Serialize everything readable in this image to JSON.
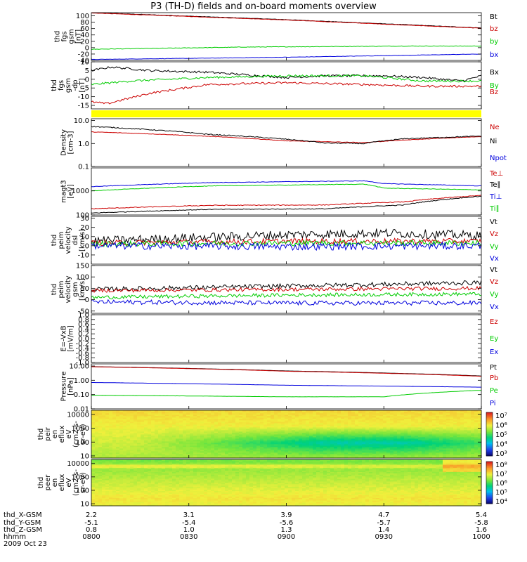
{
  "title": "P3 (TH-D) fields and on-board moments overview",
  "colors": {
    "black": "#000000",
    "red": "#cc0000",
    "green": "#00cc00",
    "blue": "#0000dd",
    "yellow": "#ffff00"
  },
  "chart_data": {
    "type": "line",
    "panels": [
      {
        "id": "fgs-gsm",
        "ylabel": [
          "thd",
          "fgs",
          "gsm",
          "[nT]"
        ],
        "scale": "linear",
        "ylim": [
          -40,
          110
        ],
        "ticks": [
          100,
          80,
          60,
          40,
          20,
          0,
          -20,
          -40
        ],
        "series": [
          {
            "name": "Bt",
            "color": "black",
            "points": [
              [
                0,
                110
              ],
              [
                0.5,
                88
              ],
              [
                1,
                62
              ]
            ],
            "noise": 0.6
          },
          {
            "name": "bz",
            "color": "red",
            "points": [
              [
                0,
                109
              ],
              [
                0.5,
                87
              ],
              [
                1,
                61
              ]
            ],
            "noise": 0.6
          },
          {
            "name": "by",
            "color": "green",
            "points": [
              [
                0,
                -5
              ],
              [
                0.4,
                2
              ],
              [
                0.8,
                5
              ],
              [
                1,
                5
              ]
            ],
            "noise": 0.8
          },
          {
            "name": "bx",
            "color": "blue",
            "points": [
              [
                0,
                -37
              ],
              [
                0.5,
                -30
              ],
              [
                1,
                -20
              ]
            ],
            "noise": 0.5
          }
        ]
      },
      {
        "id": "fgs-gsm-dp",
        "ylabel": [
          "thd",
          "fgs",
          "gsm",
          "-dp",
          "[nT]"
        ],
        "scale": "linear",
        "ylim": [
          -17,
          10
        ],
        "ticks": [
          10,
          5,
          0,
          -5,
          -10,
          -15
        ],
        "series": [
          {
            "name": "Bx",
            "color": "black",
            "points": [
              [
                0,
                5
              ],
              [
                0.05,
                7
              ],
              [
                0.15,
                5
              ],
              [
                0.3,
                4
              ],
              [
                0.5,
                1
              ],
              [
                0.6,
                2
              ],
              [
                0.75,
                2
              ],
              [
                0.85,
                1
              ],
              [
                0.95,
                -1
              ],
              [
                1,
                2
              ]
            ],
            "noise": 0.6
          },
          {
            "name": "By",
            "color": "green",
            "points": [
              [
                0,
                -3
              ],
              [
                0.1,
                -1
              ],
              [
                0.3,
                1
              ],
              [
                0.5,
                2
              ],
              [
                0.7,
                2
              ],
              [
                0.85,
                -1
              ],
              [
                1,
                -1
              ]
            ],
            "noise": 0.6
          },
          {
            "name": "Bz",
            "color": "red",
            "points": [
              [
                0,
                -13
              ],
              [
                0.04,
                -14
              ],
              [
                0.15,
                -8
              ],
              [
                0.3,
                -3
              ],
              [
                0.5,
                -2
              ],
              [
                0.7,
                -3
              ],
              [
                0.85,
                -4
              ],
              [
                1,
                -4
              ]
            ],
            "noise": 0.6
          }
        ]
      },
      {
        "id": "flag",
        "ylabel": [],
        "scale": "flag",
        "series": []
      },
      {
        "id": "density",
        "ylabel": [
          "Density",
          "[cm-3]"
        ],
        "scale": "log",
        "ylim": [
          0.1,
          12
        ],
        "ticks": [
          10.0,
          1.0,
          0.1
        ],
        "series": [
          {
            "name": "Ne",
            "color": "red",
            "points": [
              [
                0,
                3.2
              ],
              [
                0.5,
                1.3
              ],
              [
                0.7,
                1.1
              ],
              [
                1,
                2.0
              ]
            ],
            "noise": 0.02
          },
          {
            "name": "Ni",
            "color": "black",
            "points": [
              [
                0,
                5.5
              ],
              [
                0.3,
                2.5
              ],
              [
                0.6,
                1.05
              ],
              [
                0.7,
                1.0
              ],
              [
                0.8,
                1.6
              ],
              [
                1,
                2.1
              ]
            ],
            "noise": 0.04
          },
          {
            "name": "Npot",
            "color": "blue",
            "points": [],
            "noise": 0
          }
        ]
      },
      {
        "id": "temperature",
        "ylabel": [
          "magt3",
          "[eV]"
        ],
        "scale": "log",
        "ylim": [
          100,
          9000
        ],
        "ticks": [
          1000,
          100
        ],
        "series": [
          {
            "name": "Te⊥",
            "color": "red",
            "points": [
              [
                0,
                180
              ],
              [
                0.3,
                250
              ],
              [
                0.6,
                260
              ],
              [
                0.8,
                350
              ],
              [
                1,
                650
              ]
            ],
            "noise": 0.03
          },
          {
            "name": "Te∥",
            "color": "black",
            "points": [
              [
                0,
                120
              ],
              [
                0.3,
                170
              ],
              [
                0.6,
                180
              ],
              [
                0.8,
                260
              ],
              [
                1,
                600
              ]
            ],
            "noise": 0.03
          },
          {
            "name": "Ti⊥",
            "color": "blue",
            "points": [
              [
                0,
                1500
              ],
              [
                0.3,
                2200
              ],
              [
                0.7,
                2600
              ],
              [
                0.75,
                2000
              ],
              [
                1,
                1600
              ]
            ],
            "noise": 0.02
          },
          {
            "name": "Ti∥",
            "color": "green",
            "points": [
              [
                0,
                1000
              ],
              [
                0.3,
                1600
              ],
              [
                0.7,
                1900
              ],
              [
                0.75,
                1300
              ],
              [
                1,
                1100
              ]
            ],
            "noise": 0.02
          }
        ]
      },
      {
        "id": "peim-velocity-dsl",
        "ylabel": [
          "thd",
          "peim",
          "velocity",
          "dsl",
          "[km/s]"
        ],
        "scale": "linear",
        "ylim": [
          -20,
          32
        ],
        "ticks": [
          30,
          20,
          10,
          0,
          -10
        ],
        "series": [
          {
            "name": "Vt",
            "color": "black",
            "points": [
              [
                0,
                5
              ],
              [
                0.5,
                12
              ],
              [
                0.75,
                14
              ],
              [
                1,
                11
              ]
            ],
            "noise": 5
          },
          {
            "name": "Vz",
            "color": "red",
            "points": [
              [
                0,
                3
              ],
              [
                0.5,
                5
              ],
              [
                1,
                5
              ]
            ],
            "noise": 3
          },
          {
            "name": "Vy",
            "color": "green",
            "points": [
              [
                0,
                2
              ],
              [
                0.5,
                3
              ],
              [
                1,
                3
              ]
            ],
            "noise": 3
          },
          {
            "name": "Vx",
            "color": "blue",
            "points": [
              [
                0,
                0
              ],
              [
                0.5,
                -1
              ],
              [
                1,
                0
              ]
            ],
            "noise": 4
          }
        ]
      },
      {
        "id": "peim-velocity-gsm",
        "ylabel": [
          "thd",
          "peim",
          "velocity",
          "gsm",
          "[km/s]"
        ],
        "scale": "linear",
        "ylim": [
          -60,
          150
        ],
        "ticks": [
          150,
          100,
          50,
          0,
          -50
        ],
        "series": [
          {
            "name": "Vt",
            "color": "black",
            "points": [
              [
                0,
                45
              ],
              [
                0.5,
                60
              ],
              [
                1,
                75
              ]
            ],
            "noise": 10
          },
          {
            "name": "Vz",
            "color": "red",
            "points": [
              [
                0,
                40
              ],
              [
                0.5,
                45
              ],
              [
                1,
                50
              ]
            ],
            "noise": 8
          },
          {
            "name": "Vy",
            "color": "green",
            "points": [
              [
                0,
                10
              ],
              [
                0.5,
                20
              ],
              [
                1,
                25
              ]
            ],
            "noise": 8
          },
          {
            "name": "Vx",
            "color": "blue",
            "points": [
              [
                0,
                -10
              ],
              [
                0.5,
                -15
              ],
              [
                1,
                -15
              ]
            ],
            "noise": 10
          }
        ]
      },
      {
        "id": "efield",
        "ylabel": [
          "E=-VxB",
          "[mV/m]"
        ],
        "scale": "linear",
        "ylim": [
          -1,
          1
        ],
        "ticks": [
          1.0,
          0.8,
          0.6,
          0.4,
          0.2,
          0.0,
          -0.2,
          -0.4,
          -0.6,
          -0.8,
          -1.0
        ],
        "series": [
          {
            "name": "Ez",
            "color": "red",
            "points": [],
            "noise": 0
          },
          {
            "name": "Ey",
            "color": "green",
            "points": [],
            "noise": 0
          },
          {
            "name": "Ex",
            "color": "blue",
            "points": [],
            "noise": 0
          }
        ]
      },
      {
        "id": "pressure",
        "ylabel": [
          "Pressure",
          "[nPa]"
        ],
        "scale": "log",
        "ylim": [
          0.01,
          14
        ],
        "ticks": [
          10.0,
          1.0,
          0.1,
          0.01
        ],
        "series": [
          {
            "name": "Pt",
            "color": "black",
            "points": [
              [
                0,
                9
              ],
              [
                0.5,
                4.5
              ],
              [
                1,
                2.0
              ]
            ],
            "noise": 0.005
          },
          {
            "name": "Pb",
            "color": "red",
            "points": [
              [
                0,
                8.8
              ],
              [
                0.5,
                4.3
              ],
              [
                1,
                1.9
              ]
            ],
            "noise": 0.005
          },
          {
            "name": "Pe",
            "color": "green",
            "points": [
              [
                0,
                0.09
              ],
              [
                0.5,
                0.07
              ],
              [
                0.75,
                0.07
              ],
              [
                1,
                0.2
              ]
            ],
            "noise": 0.01
          },
          {
            "name": "Pi",
            "color": "blue",
            "points": [
              [
                0,
                0.7
              ],
              [
                0.5,
                0.45
              ],
              [
                1,
                0.33
              ]
            ],
            "noise": 0.005
          }
        ]
      },
      {
        "id": "ion-spectrogram",
        "ylabel": [
          "thd",
          "peir",
          "en",
          "eflux",
          "eV",
          "(cm2-s-",
          "sr-eV)"
        ],
        "scale": "spectrogram",
        "ylim": [
          7,
          20000
        ],
        "ticks": [
          10000,
          1000,
          100,
          10
        ],
        "colorbar": {
          "min": 3,
          "max": 7,
          "ticks": [
            "10⁷",
            "10⁶",
            "10⁵",
            "10⁴",
            "10³"
          ]
        }
      },
      {
        "id": "electron-spectrogram",
        "ylabel": [
          "thd",
          "peer",
          "en",
          "eflux",
          "eV",
          "(cm2-s-",
          "sr-eV)"
        ],
        "scale": "spectrogram",
        "ylim": [
          7,
          20000
        ],
        "ticks": [
          10000,
          1000,
          100,
          10
        ],
        "colorbar": {
          "min": 4,
          "max": 8,
          "ticks": [
            "10⁸",
            "10⁷",
            "10⁶",
            "10⁵",
            "10⁴"
          ]
        }
      }
    ],
    "xaxis": {
      "rows": [
        {
          "label": "thd_X-GSM",
          "values": [
            "2.2",
            "3.1",
            "3.9",
            "4.7",
            "5.4"
          ]
        },
        {
          "label": "thd_Y-GSM",
          "values": [
            "-5.1",
            "-5.4",
            "-5.6",
            "-5.7",
            "-5.8"
          ]
        },
        {
          "label": "thd_Z-GSM",
          "values": [
            "0.8",
            "1.0",
            "1.3",
            "1.4",
            "1.6"
          ]
        },
        {
          "label": "hhmm",
          "values": [
            "0800",
            "0830",
            "0900",
            "0930",
            "1000"
          ]
        }
      ],
      "date": "2009 Oct 23"
    }
  }
}
